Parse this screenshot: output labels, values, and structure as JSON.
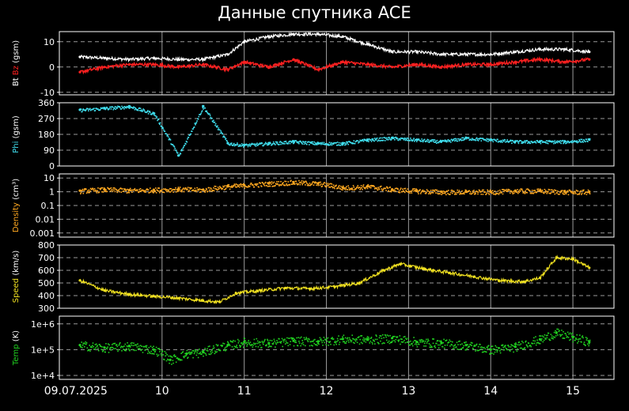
{
  "title": "Данные спутника ACE",
  "colors": {
    "bt": "#ffffff",
    "bz": "#ff2020",
    "phi": "#40e0f0",
    "density": "#ffa820",
    "speed": "#f0e020",
    "temp": "#20d020",
    "frame": "#ffffff",
    "grid": "#9a9a9a"
  },
  "x_ticks": [
    "09.07.2025",
    "10",
    "11",
    "12",
    "13",
    "14",
    "15"
  ],
  "chart_data": [
    {
      "type": "line",
      "ylabel_parts": [
        "Bt",
        "Bz",
        "(gsm)"
      ],
      "yticks": [
        "10",
        "0",
        "-10"
      ],
      "ylim": [
        -11,
        14
      ],
      "series": [
        {
          "name": "Bt",
          "x": [
            9.0,
            9.3,
            9.6,
            9.9,
            10.2,
            10.5,
            10.8,
            11.0,
            11.3,
            11.6,
            11.9,
            12.2,
            12.5,
            12.8,
            13.1,
            13.4,
            13.7,
            14.0,
            14.3,
            14.6,
            14.9,
            15.2
          ],
          "values": [
            4,
            3.5,
            3,
            3.5,
            3,
            3,
            5,
            10,
            12,
            13,
            13,
            12,
            9,
            6,
            6,
            5,
            5,
            5,
            6,
            7,
            7,
            6
          ]
        },
        {
          "name": "Bz",
          "x": [
            9.0,
            9.3,
            9.6,
            9.9,
            10.2,
            10.5,
            10.8,
            11.0,
            11.3,
            11.6,
            11.9,
            12.2,
            12.5,
            12.8,
            13.1,
            13.4,
            13.7,
            14.0,
            14.3,
            14.6,
            14.9,
            15.2
          ],
          "values": [
            -2,
            0,
            1,
            1,
            0,
            1,
            -1,
            2,
            0,
            3,
            -1,
            2,
            1,
            0,
            1,
            0,
            1,
            1,
            2,
            3,
            2,
            3
          ]
        }
      ]
    },
    {
      "type": "scatter",
      "ylabel_parts": [
        "Phi",
        "(gsm)"
      ],
      "yticks": [
        "360",
        "270",
        "180",
        "90",
        "0"
      ],
      "ylim": [
        0,
        360
      ],
      "series": [
        {
          "name": "Phi",
          "x": [
            9.0,
            9.3,
            9.6,
            9.9,
            10.2,
            10.5,
            10.8,
            11.0,
            11.3,
            11.6,
            11.9,
            12.2,
            12.5,
            12.8,
            13.1,
            13.4,
            13.7,
            14.0,
            14.3,
            14.6,
            14.9,
            15.2
          ],
          "values": [
            320,
            330,
            340,
            300,
            60,
            340,
            130,
            120,
            130,
            140,
            130,
            130,
            150,
            160,
            150,
            140,
            160,
            150,
            140,
            140,
            140,
            150
          ]
        }
      ]
    },
    {
      "type": "scatter",
      "ylabel_parts": [
        "Density",
        "(cm³)"
      ],
      "yticks": [
        "10",
        "1",
        "0.1",
        "0.01",
        "0.001"
      ],
      "ylim": [
        0.0005,
        20
      ],
      "log": true,
      "series": [
        {
          "name": "Density",
          "x": [
            9.0,
            9.3,
            9.6,
            9.9,
            10.2,
            10.5,
            10.8,
            11.0,
            11.3,
            11.6,
            11.9,
            12.2,
            12.5,
            12.8,
            13.1,
            13.4,
            13.7,
            14.0,
            14.3,
            14.6,
            14.9,
            15.2
          ],
          "values": [
            1.2,
            1.5,
            1.3,
            1.4,
            1.6,
            1.4,
            2.5,
            3,
            4,
            5,
            4,
            2,
            2.5,
            1.5,
            1.2,
            1,
            1,
            1,
            1.2,
            1.2,
            1,
            1
          ]
        }
      ]
    },
    {
      "type": "line",
      "ylabel_parts": [
        "Speed",
        "(km/s)"
      ],
      "yticks": [
        "800",
        "700",
        "600",
        "500",
        "400",
        "300"
      ],
      "ylim": [
        300,
        800
      ],
      "series": [
        {
          "name": "Speed",
          "x": [
            9.0,
            9.3,
            9.6,
            9.9,
            10.2,
            10.5,
            10.7,
            10.9,
            11.2,
            11.5,
            11.8,
            12.1,
            12.4,
            12.7,
            12.9,
            13.2,
            13.5,
            13.8,
            14.1,
            14.4,
            14.6,
            14.8,
            15.0,
            15.2
          ],
          "values": [
            520,
            440,
            410,
            395,
            380,
            360,
            350,
            420,
            440,
            460,
            455,
            470,
            500,
            600,
            650,
            610,
            580,
            550,
            520,
            510,
            540,
            700,
            690,
            620
          ]
        }
      ]
    },
    {
      "type": "scatter",
      "ylabel_parts": [
        "Temp",
        "(K)"
      ],
      "yticks": [
        "1e+6",
        "1e+5",
        "1e+4"
      ],
      "ylim": [
        7000,
        2000000
      ],
      "log": true,
      "series": [
        {
          "name": "Temp",
          "x": [
            9.0,
            9.3,
            9.6,
            9.9,
            10.1,
            10.3,
            10.5,
            10.8,
            11.0,
            11.3,
            11.6,
            11.9,
            12.2,
            12.5,
            12.8,
            13.1,
            13.4,
            13.7,
            14.0,
            14.3,
            14.6,
            14.8,
            15.0,
            15.2
          ],
          "values": [
            150000,
            120000,
            140000,
            100000,
            40000,
            70000,
            80000,
            150000,
            200000,
            180000,
            220000,
            210000,
            260000,
            250000,
            280000,
            200000,
            180000,
            150000,
            100000,
            130000,
            250000,
            450000,
            300000,
            200000
          ]
        }
      ]
    }
  ]
}
